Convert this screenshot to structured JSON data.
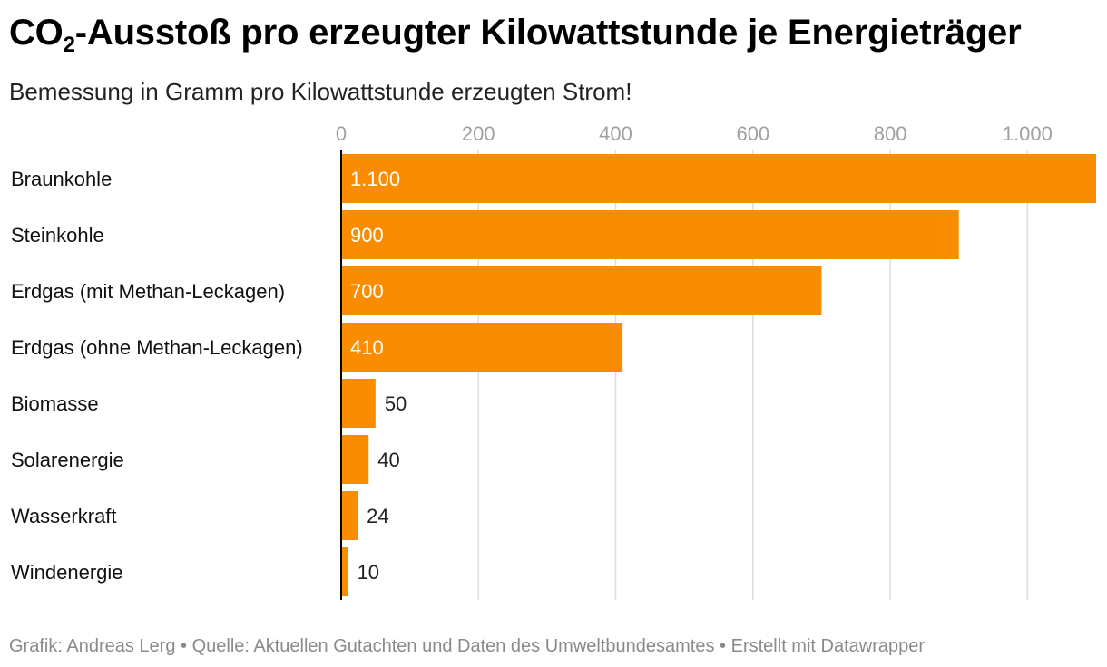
{
  "header": {
    "title_part1": "CO",
    "title_sub": "2",
    "title_part2": "-Ausstoß pro erzeugter Kilowattstunde je Energieträger",
    "subtitle": "Bemessung in Gramm pro Kilowattstunde erzeugten Strom!"
  },
  "footer": {
    "credit_label": "Grafik:",
    "credit": "Andreas Lerg",
    "source_label": "Quelle:",
    "source": "Aktuellen Gutachten und Daten des Umweltbundesamtes",
    "tool": "Erstellt mit Datawrapper",
    "separator": "•"
  },
  "colors": {
    "bar": "#F98C00",
    "grid": "#DDDDDD",
    "tick_label": "#A0A0A0",
    "baseline": "#000000",
    "value_inside": "#FFFFFF",
    "value_outside": "#222222"
  },
  "chart_data": {
    "type": "bar",
    "orientation": "horizontal",
    "title": "CO2-Ausstoß pro erzeugter Kilowattstunde je Energieträger",
    "xlabel": "",
    "ylabel": "",
    "xlim": [
      0,
      1100
    ],
    "ticks": [
      0,
      200,
      400,
      600,
      800,
      1000
    ],
    "tick_labels": [
      "0",
      "200",
      "400",
      "600",
      "800",
      "1.000"
    ],
    "categories": [
      "Braunkohle",
      "Steinkohle",
      "Erdgas (mit Methan-Leckagen)",
      "Erdgas (ohne Methan-Leckagen)",
      "Biomasse",
      "Solarenergie",
      "Wasserkraft",
      "Windenergie"
    ],
    "values": [
      1100,
      900,
      700,
      410,
      50,
      40,
      24,
      10
    ],
    "value_labels": [
      "1.100",
      "900",
      "700",
      "410",
      "50",
      "40",
      "24",
      "10"
    ],
    "grid": true,
    "legend": "none"
  }
}
